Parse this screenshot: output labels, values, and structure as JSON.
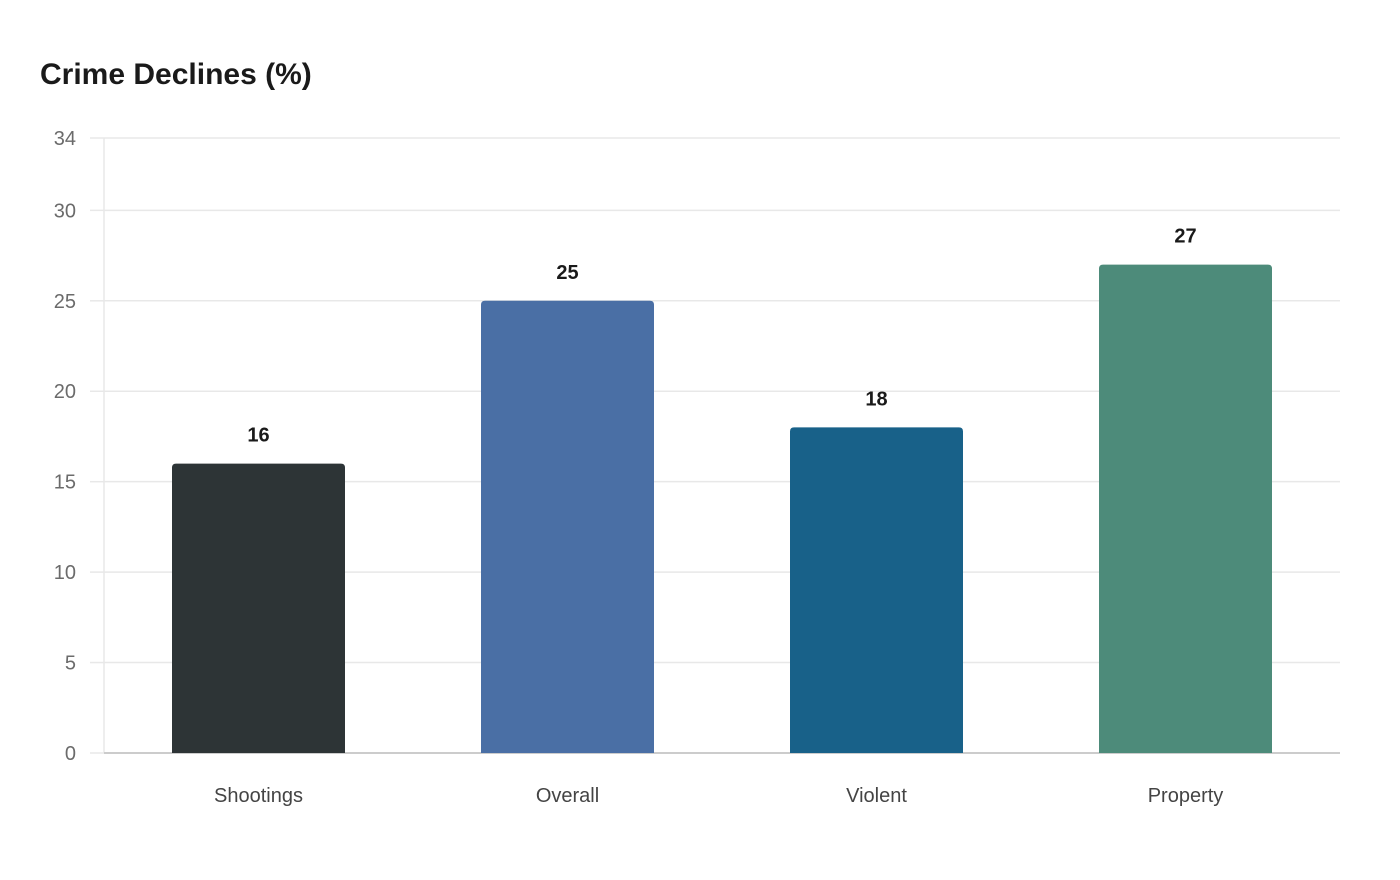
{
  "chart_data": {
    "type": "bar",
    "title": "Crime Declines (%)",
    "xlabel": "",
    "ylabel": "",
    "categories": [
      "Shootings",
      "Overall",
      "Violent",
      "Property"
    ],
    "values": [
      16,
      25,
      18,
      27
    ],
    "colors": [
      "#2d3436",
      "#4a6fa5",
      "#186189",
      "#4d8b7a"
    ],
    "ylim": [
      0,
      34
    ],
    "yticks": [
      0,
      5,
      10,
      15,
      20,
      25,
      30,
      34
    ],
    "grid": true,
    "legend": "none",
    "gridline_color": "#e8e8e8",
    "axis_color": "#cccccc"
  }
}
